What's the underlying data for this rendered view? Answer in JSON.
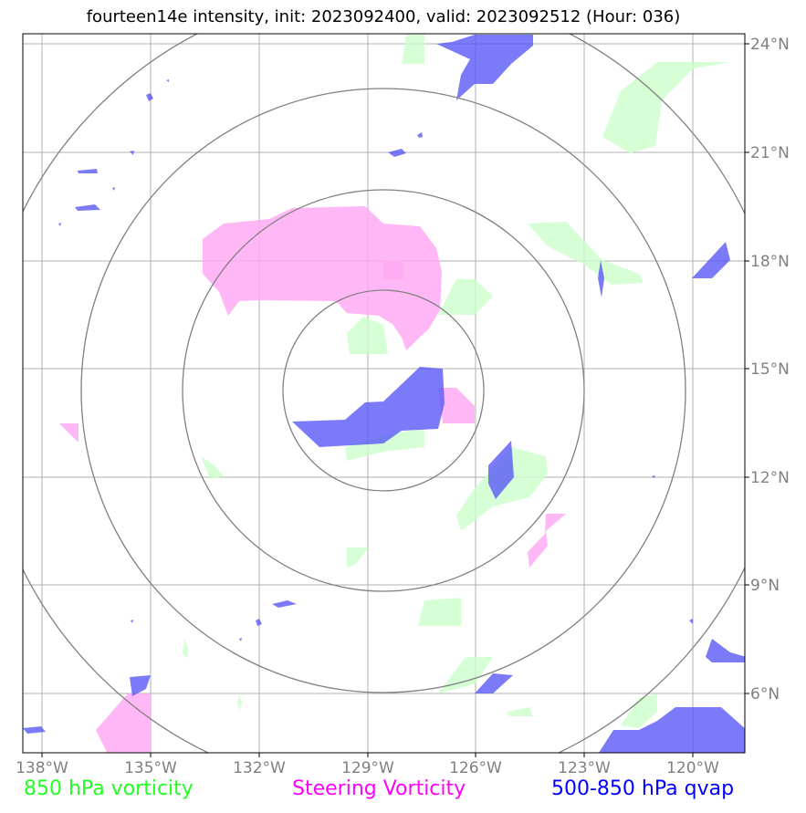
{
  "title": "fourteen14e intensity, init: 2023092400, valid: 2023092512 (Hour: 036)",
  "map": {
    "lon_range": [
      -138.5,
      -118.8
    ],
    "lat_range": [
      4.5,
      24.5
    ],
    "lon_ticks": [
      {
        "value": -138,
        "label": "138°W"
      },
      {
        "value": -135,
        "label": "135°W"
      },
      {
        "value": -132,
        "label": "132°W"
      },
      {
        "value": -129,
        "label": "129°W"
      },
      {
        "value": -126,
        "label": "126°W"
      },
      {
        "value": -123,
        "label": "123°W"
      },
      {
        "value": -120,
        "label": "120°W"
      }
    ],
    "lat_ticks": [
      {
        "value": 24,
        "label": "24°N"
      },
      {
        "value": 21,
        "label": "21°N"
      },
      {
        "value": 18,
        "label": "18°N"
      },
      {
        "value": 15,
        "label": "15°N"
      },
      {
        "value": 12,
        "label": "12°N"
      },
      {
        "value": 9,
        "label": "9°N"
      },
      {
        "value": 6,
        "label": "6°N"
      }
    ],
    "gridlines": true,
    "range_rings_center": {
      "lon": -128.9,
      "lat": 14.4
    }
  },
  "legend": {
    "vorticity_850": {
      "label": "850 hPa vorticity",
      "color": "#22ff22"
    },
    "steering_vorticity": {
      "label": "Steering Vorticity",
      "color": "#ff00ff"
    },
    "qvap": {
      "label": "500-850 hPa qvap",
      "color": "#0000ff"
    }
  },
  "colors": {
    "green_fill": "#ccffcc",
    "magenta_fill": "#ffaaf5",
    "blue_fill": "#6e6efa",
    "grid": "#b0b0b0",
    "ring": "#808080"
  }
}
